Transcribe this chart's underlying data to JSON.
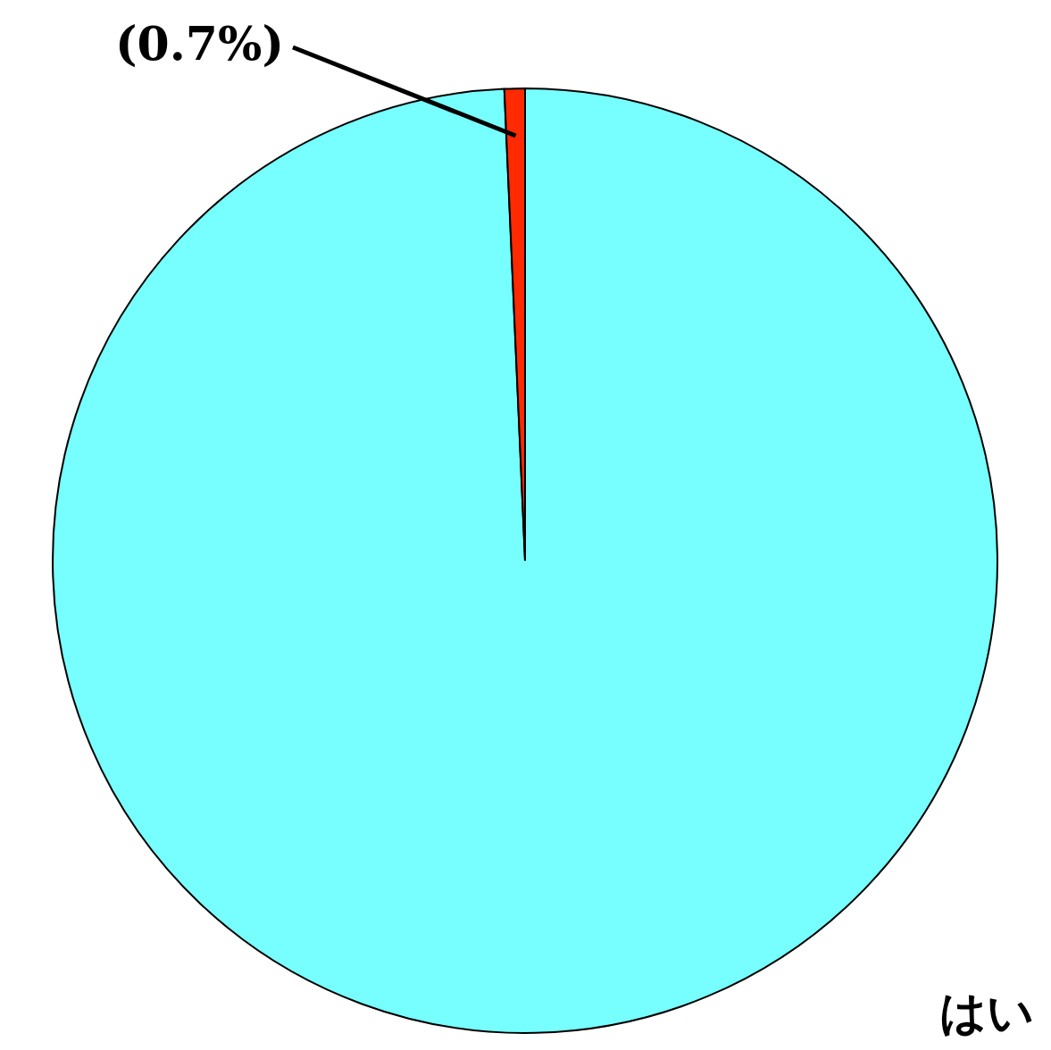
{
  "chart_data": {
    "type": "pie",
    "categories": [
      "はい",
      null
    ],
    "values": [
      99.3,
      0.7
    ],
    "colors": [
      "#77ffff",
      "#ff2a00"
    ],
    "value_labels": [
      null,
      "(0.7%)"
    ],
    "legend": false
  }
}
